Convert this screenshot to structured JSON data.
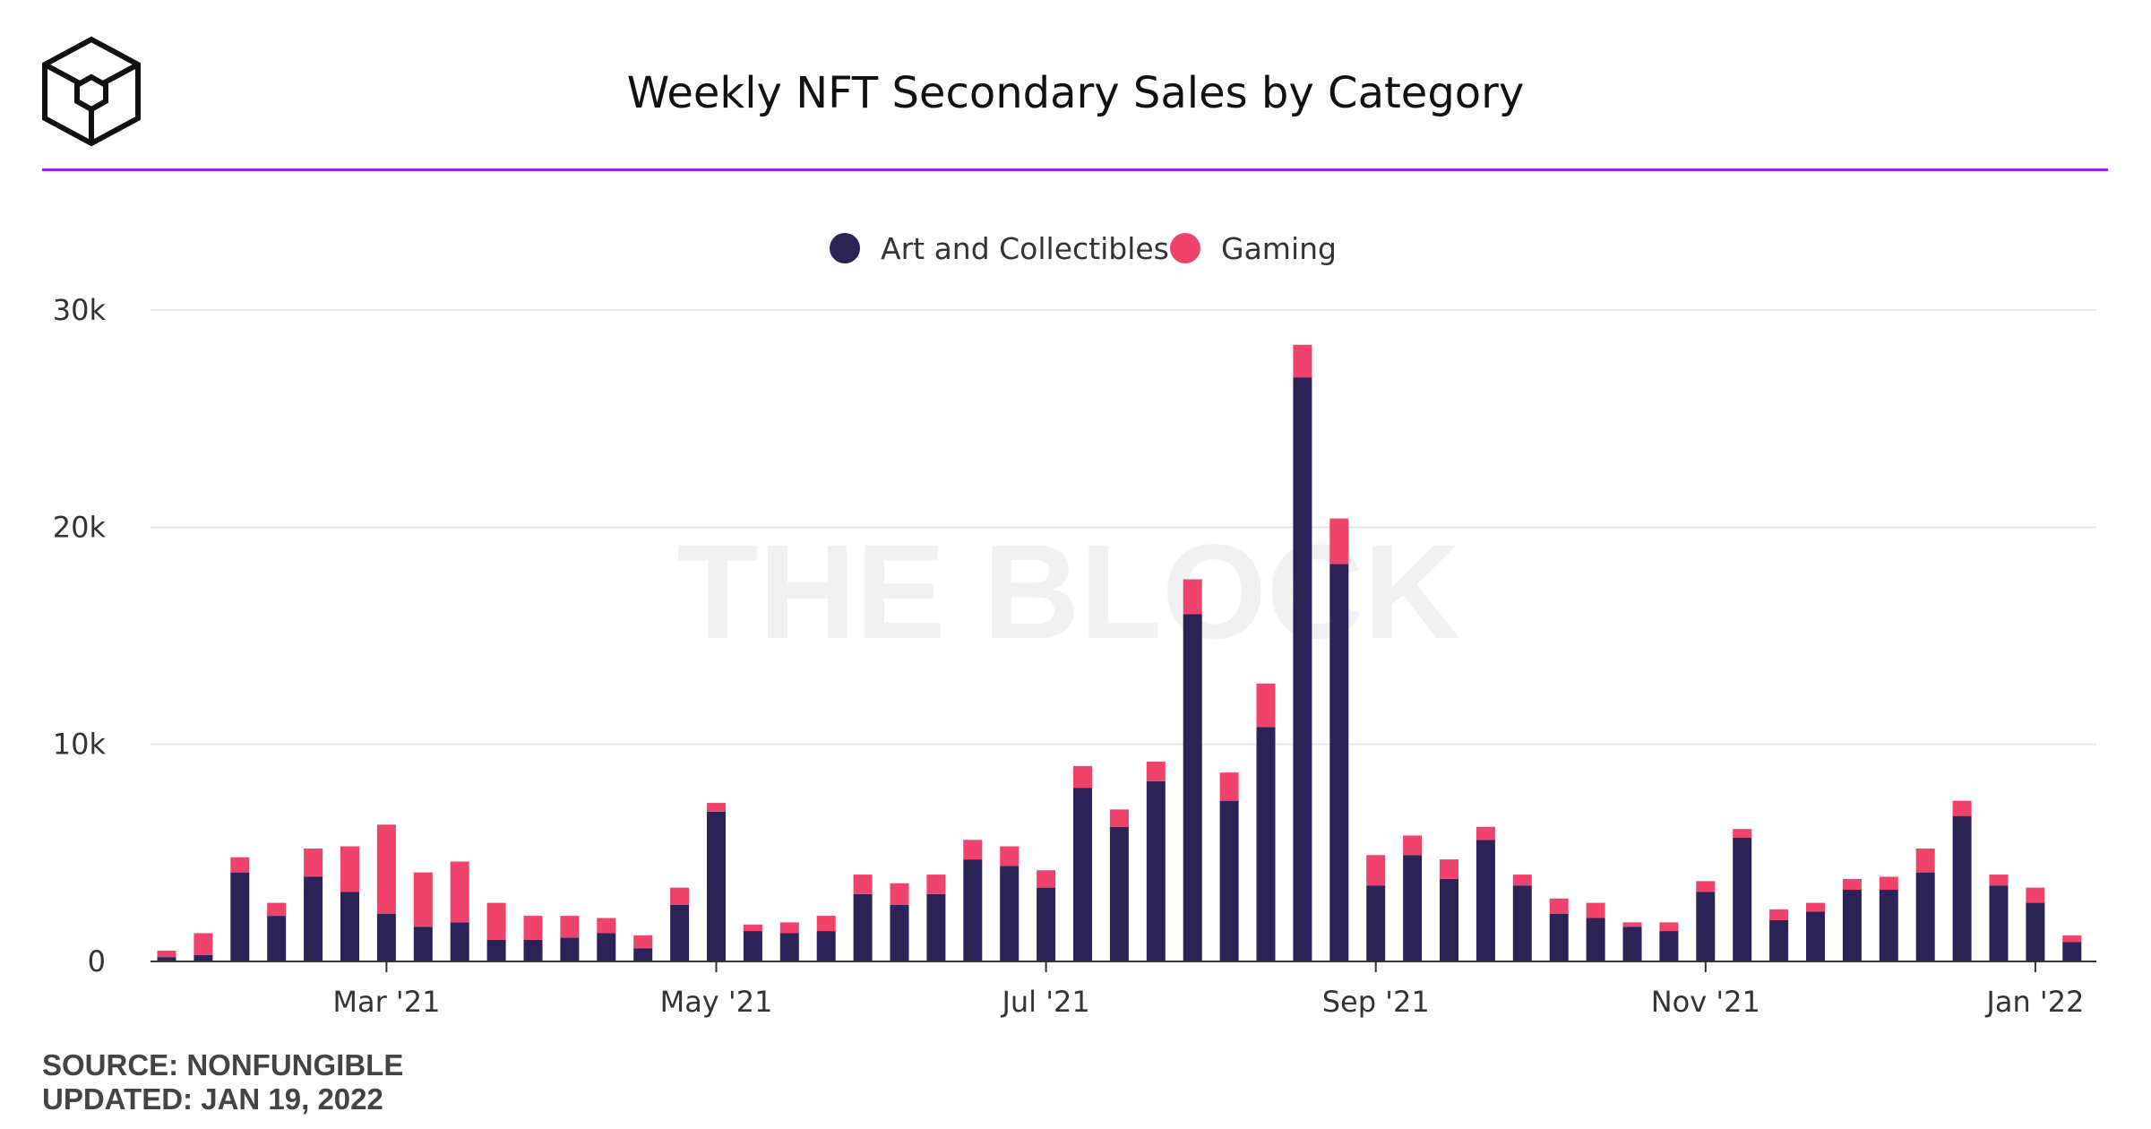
{
  "title": "Weekly NFT Secondary Sales by Category",
  "watermark": "THE BLOCK",
  "footer": {
    "source": "SOURCE: NONFUNGIBLE",
    "updated": "UPDATED: JAN 19, 2022"
  },
  "colors": {
    "art": "#2b2258",
    "gaming": "#ef436c",
    "accent_line": "#9b1fe8",
    "grid": "#e6e6e6"
  },
  "chart_data": {
    "type": "bar",
    "stacked": true,
    "title": "Weekly NFT Secondary Sales by Category",
    "legend_position": "top-center",
    "grid": true,
    "ylim": [
      0,
      30000
    ],
    "y_ticks": [
      0,
      10000,
      20000,
      30000
    ],
    "y_tick_labels": [
      "0",
      "10k",
      "20k",
      "30k"
    ],
    "x_ticks": [
      {
        "label": "Mar '21",
        "index": 6
      },
      {
        "label": "May '21",
        "index": 15
      },
      {
        "label": "Jul '21",
        "index": 24
      },
      {
        "label": "Sep '21",
        "index": 33
      },
      {
        "label": "Nov '21",
        "index": 42
      },
      {
        "label": "Jan '22",
        "index": 51
      }
    ],
    "series": [
      {
        "name": "Art and Collectibles",
        "color": "#2b2258",
        "values": [
          200,
          300,
          4100,
          2100,
          3900,
          3200,
          2200,
          1600,
          1800,
          1000,
          1000,
          1100,
          1300,
          600,
          2600,
          6900,
          1400,
          1300,
          1400,
          3100,
          2600,
          3100,
          4700,
          4400,
          3400,
          8000,
          6200,
          8300,
          16000,
          7400,
          10800,
          26900,
          18300,
          3500,
          4900,
          3800,
          5600,
          3500,
          2200,
          2000,
          1600,
          1400,
          3200,
          5700,
          1900,
          2300,
          3300,
          3300,
          4100,
          6700,
          3500,
          2700,
          900
        ]
      },
      {
        "name": "Gaming",
        "color": "#ef436c",
        "values": [
          300,
          1000,
          700,
          600,
          1300,
          2100,
          4100,
          2500,
          2800,
          1700,
          1100,
          1000,
          700,
          600,
          800,
          400,
          300,
          500,
          700,
          900,
          1000,
          900,
          900,
          900,
          800,
          1000,
          800,
          900,
          1600,
          1300,
          2000,
          1500,
          2100,
          1400,
          900,
          900,
          600,
          500,
          700,
          700,
          200,
          400,
          500,
          400,
          500,
          400,
          500,
          600,
          1100,
          700,
          500,
          700,
          300
        ]
      }
    ]
  }
}
